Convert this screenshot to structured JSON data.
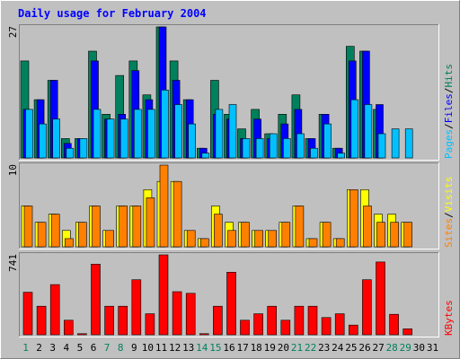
{
  "chart_data": {
    "type": "bar",
    "title": "Daily usage for February 2004",
    "days": [
      "1",
      "2",
      "3",
      "4",
      "5",
      "6",
      "7",
      "8",
      "9",
      "10",
      "11",
      "12",
      "13",
      "14",
      "15",
      "16",
      "17",
      "18",
      "19",
      "20",
      "21",
      "22",
      "23",
      "24",
      "25",
      "26",
      "27",
      "28",
      "29",
      "30",
      "31"
    ],
    "weekend_days": [
      1,
      7,
      8,
      14,
      15,
      21,
      22,
      28,
      29
    ],
    "colors": {
      "hits": "#00805c",
      "files": "#0000ff",
      "pages": "#00c0ff",
      "visits": "#ffff00",
      "sites": "#ff8000",
      "kbytes": "#ff0000",
      "title": "#0000ff",
      "weekend_label": "#00805c",
      "weekday_label": "#000000"
    },
    "panel_top": {
      "max_label": "27",
      "legend": [
        {
          "key": "pages",
          "label": "Pages"
        },
        {
          "key": "sep",
          "label": "/"
        },
        {
          "key": "files",
          "label": "Files"
        },
        {
          "key": "sep",
          "label": "/"
        },
        {
          "key": "hits",
          "label": "Hits"
        }
      ],
      "ylim": [
        0,
        27
      ],
      "hits": [
        20,
        12,
        16,
        4,
        4,
        22,
        9,
        17,
        20,
        13,
        27,
        20,
        12,
        2,
        16,
        9,
        6,
        10,
        5,
        9,
        13,
        4,
        9,
        2,
        23,
        22,
        10,
        0,
        0,
        0,
        0
      ],
      "files": [
        0,
        0,
        0,
        0,
        0,
        0,
        0,
        0,
        0,
        0,
        0,
        0,
        0,
        0,
        0,
        0,
        0,
        0,
        0,
        0,
        0,
        0,
        0,
        0,
        0,
        0,
        0,
        0,
        0,
        0,
        0
      ],
      "files_v": [
        10,
        12,
        16,
        3,
        4,
        20,
        8,
        9,
        18,
        12,
        27,
        16,
        12,
        2,
        9,
        8,
        4,
        8,
        4,
        7,
        10,
        4,
        9,
        2,
        20,
        22,
        11,
        0,
        0,
        0,
        0
      ],
      "pages": [
        10,
        7,
        8,
        2,
        4,
        10,
        8,
        8,
        10,
        10,
        14,
        11,
        7,
        1,
        10,
        11,
        4,
        4,
        5,
        4,
        5,
        2,
        7,
        1,
        12,
        11,
        5,
        6,
        6,
        0,
        0
      ]
    },
    "panel_mid": {
      "max_label": "10",
      "legend": [
        {
          "key": "sites",
          "label": "Sites"
        },
        {
          "key": "sep",
          "label": "/"
        },
        {
          "key": "visits",
          "label": "Visits"
        }
      ],
      "ylim": [
        0,
        10
      ],
      "visits": [
        5,
        3,
        4,
        2,
        3,
        5,
        2,
        5,
        5,
        7,
        8,
        8,
        2,
        1,
        5,
        3,
        3,
        2,
        2,
        3,
        5,
        1,
        3,
        1,
        7,
        7,
        4,
        4,
        3,
        0,
        0
      ],
      "sites": [
        5,
        3,
        4,
        1,
        3,
        5,
        2,
        5,
        5,
        6,
        10,
        8,
        2,
        1,
        4,
        2,
        3,
        2,
        2,
        3,
        5,
        1,
        3,
        1,
        7,
        5,
        3,
        3,
        3,
        0,
        0
      ]
    },
    "panel_bot": {
      "max_label": "741",
      "legend": [
        {
          "key": "kbytes",
          "label": "KBytes"
        }
      ],
      "ylim": [
        0,
        741
      ],
      "kbytes": [
        395,
        265,
        465,
        135,
        10,
        655,
        265,
        265,
        510,
        195,
        741,
        400,
        385,
        10,
        265,
        580,
        135,
        195,
        265,
        135,
        265,
        265,
        160,
        195,
        90,
        510,
        675,
        190,
        55,
        0,
        0
      ]
    }
  }
}
